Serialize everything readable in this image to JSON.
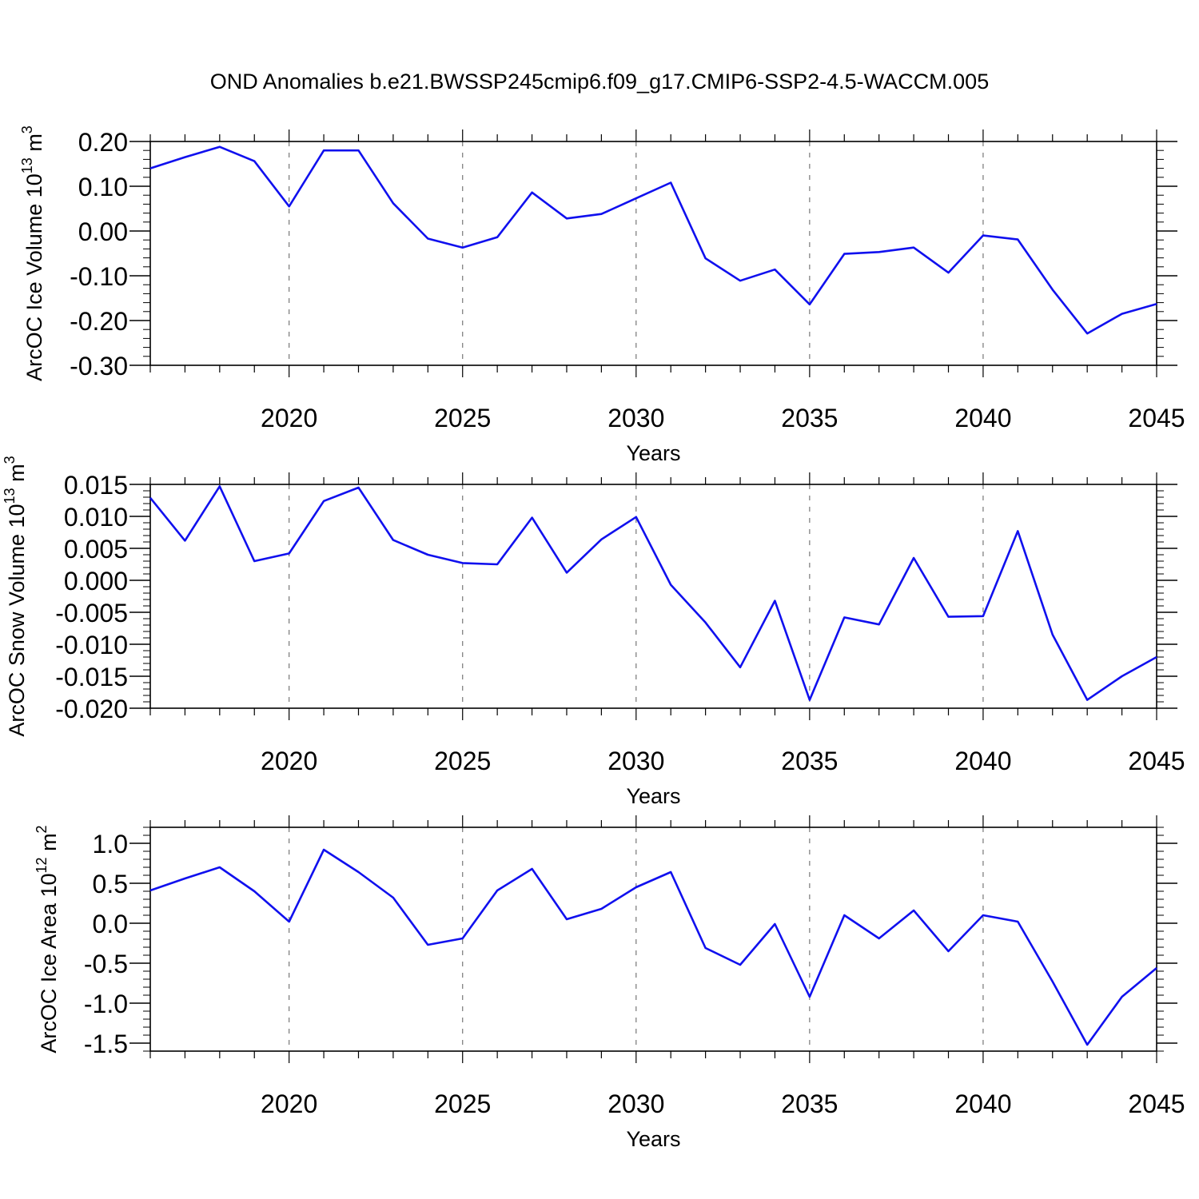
{
  "title": "OND Anomalies b.e21.BWSSP245cmip6.f09_g17.CMIP6-SSP2-4.5-WACCM.005",
  "colors": {
    "line": "#1010ee",
    "axis": "#000000",
    "grid": "#777777"
  },
  "chart_data": [
    {
      "type": "line",
      "ylabel": "ArcOC Ice Volume 10",
      "ylabel_sup": "13",
      "ylabel_unit": " m",
      "ylabel_unit_sup": "3",
      "xlabel": "Years",
      "xlim": [
        2016,
        2045
      ],
      "ylim": [
        -0.3,
        0.2
      ],
      "yticks": [
        0.2,
        0.1,
        0.0,
        -0.1,
        -0.2,
        -0.3
      ],
      "ytick_labels": [
        "0.20",
        "0.10",
        "0.00",
        "-0.10",
        "-0.20",
        "-0.30"
      ],
      "xticks": [
        2020,
        2025,
        2030,
        2035,
        2040,
        2045
      ],
      "xtick_labels": [
        "2020",
        "2025",
        "2030",
        "2035",
        "2040",
        "2045"
      ],
      "grid": "vertical dashed at major x ticks",
      "x": [
        2016,
        2017,
        2018,
        2019,
        2020,
        2021,
        2022,
        2023,
        2024,
        2025,
        2026,
        2027,
        2028,
        2029,
        2030,
        2031,
        2032,
        2033,
        2034,
        2035,
        2036,
        2037,
        2038,
        2039,
        2040,
        2041,
        2042,
        2043,
        2044,
        2045
      ],
      "y": [
        0.14,
        0.165,
        0.188,
        0.156,
        0.055,
        0.18,
        0.18,
        0.062,
        -0.017,
        -0.037,
        -0.014,
        0.086,
        0.028,
        0.038,
        0.073,
        0.108,
        -0.061,
        -0.111,
        -0.086,
        -0.164,
        -0.051,
        -0.047,
        -0.037,
        -0.093,
        -0.01,
        -0.019,
        -0.131,
        -0.229,
        -0.185,
        -0.163
      ]
    },
    {
      "type": "line",
      "ylabel": "ArcOC Snow Volume 10",
      "ylabel_sup": "13",
      "ylabel_unit": " m",
      "ylabel_unit_sup": "3",
      "xlabel": "Years",
      "xlim": [
        2016,
        2045
      ],
      "ylim": [
        -0.02,
        0.015
      ],
      "yticks": [
        0.015,
        0.01,
        0.005,
        0.0,
        -0.005,
        -0.01,
        -0.015,
        -0.02
      ],
      "ytick_labels": [
        "0.015",
        "0.010",
        "0.005",
        "0.000",
        "-0.005",
        "-0.010",
        "-0.015",
        "-0.020"
      ],
      "xticks": [
        2020,
        2025,
        2030,
        2035,
        2040,
        2045
      ],
      "xtick_labels": [
        "2020",
        "2025",
        "2030",
        "2035",
        "2040",
        "2045"
      ],
      "grid": "vertical dashed at major x ticks",
      "x": [
        2016,
        2017,
        2018,
        2019,
        2020,
        2021,
        2022,
        2023,
        2024,
        2025,
        2026,
        2027,
        2028,
        2029,
        2030,
        2031,
        2032,
        2033,
        2034,
        2035,
        2036,
        2037,
        2038,
        2039,
        2040,
        2041,
        2042,
        2043,
        2044,
        2045
      ],
      "y": [
        0.0129,
        0.0062,
        0.0147,
        0.003,
        0.0042,
        0.0124,
        0.0145,
        0.0063,
        0.004,
        0.0027,
        0.0025,
        0.0098,
        0.0012,
        0.0064,
        0.0099,
        -0.0007,
        -0.0066,
        -0.0136,
        -0.0032,
        -0.0187,
        -0.0058,
        -0.0069,
        0.0035,
        -0.0057,
        -0.0056,
        0.0077,
        -0.0085,
        -0.0187,
        -0.015,
        -0.012
      ]
    },
    {
      "type": "line",
      "ylabel": "ArcOC Ice Area 10",
      "ylabel_sup": "12",
      "ylabel_unit": " m",
      "ylabel_unit_sup": "2",
      "xlabel": "Years",
      "xlim": [
        2016,
        2045
      ],
      "ylim": [
        -1.6,
        1.2
      ],
      "yticks": [
        1.0,
        0.5,
        0.0,
        -0.5,
        -1.0,
        -1.5
      ],
      "ytick_labels": [
        "1.0",
        "0.5",
        "0.0",
        "-0.5",
        "-1.0",
        "-1.5"
      ],
      "xticks": [
        2020,
        2025,
        2030,
        2035,
        2040,
        2045
      ],
      "xtick_labels": [
        "2020",
        "2025",
        "2030",
        "2035",
        "2040",
        "2045"
      ],
      "grid": "vertical dashed at major x ticks",
      "x": [
        2016,
        2017,
        2018,
        2019,
        2020,
        2021,
        2022,
        2023,
        2024,
        2025,
        2026,
        2027,
        2028,
        2029,
        2030,
        2031,
        2032,
        2033,
        2034,
        2035,
        2036,
        2037,
        2038,
        2039,
        2040,
        2041,
        2042,
        2043,
        2044,
        2045
      ],
      "y": [
        0.41,
        0.56,
        0.7,
        0.4,
        0.02,
        0.92,
        0.64,
        0.32,
        -0.27,
        -0.19,
        0.41,
        0.68,
        0.05,
        0.18,
        0.45,
        0.64,
        -0.31,
        -0.52,
        -0.01,
        -0.92,
        0.1,
        -0.19,
        0.16,
        -0.35,
        0.1,
        0.02,
        -0.73,
        -1.52,
        -0.92,
        -0.56
      ]
    }
  ]
}
